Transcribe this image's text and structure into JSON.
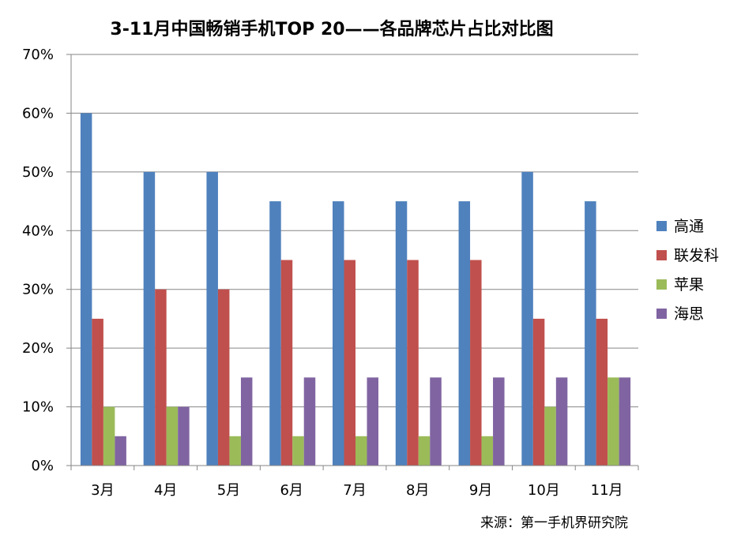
{
  "chart_data": {
    "type": "bar",
    "title": "3-11月中国畅销手机TOP 20——各品牌芯片占比对比图",
    "categories": [
      "3月",
      "4月",
      "5月",
      "6月",
      "7月",
      "8月",
      "9月",
      "10月",
      "11月"
    ],
    "series": [
      {
        "name": "高通",
        "color": "#4F81BD",
        "values": [
          60,
          50,
          50,
          45,
          45,
          45,
          45,
          50,
          45
        ]
      },
      {
        "name": "联发科",
        "color": "#C0504D",
        "values": [
          25,
          30,
          30,
          35,
          35,
          35,
          35,
          25,
          25
        ]
      },
      {
        "name": "苹果",
        "color": "#9BBB59",
        "values": [
          10,
          10,
          5,
          5,
          5,
          5,
          5,
          10,
          15
        ]
      },
      {
        "name": "海思",
        "color": "#8064A2",
        "values": [
          5,
          10,
          15,
          15,
          15,
          15,
          15,
          15,
          15
        ]
      }
    ],
    "ylim": [
      0,
      70
    ],
    "yticks": [
      "0%",
      "10%",
      "20%",
      "30%",
      "40%",
      "50%",
      "60%",
      "70%"
    ],
    "ytick_values": [
      0,
      10,
      20,
      30,
      40,
      50,
      60,
      70
    ],
    "xlabel": "",
    "ylabel": "",
    "grid": true,
    "legend_position": "right"
  },
  "source_note": "来源：第一手机界研究院"
}
